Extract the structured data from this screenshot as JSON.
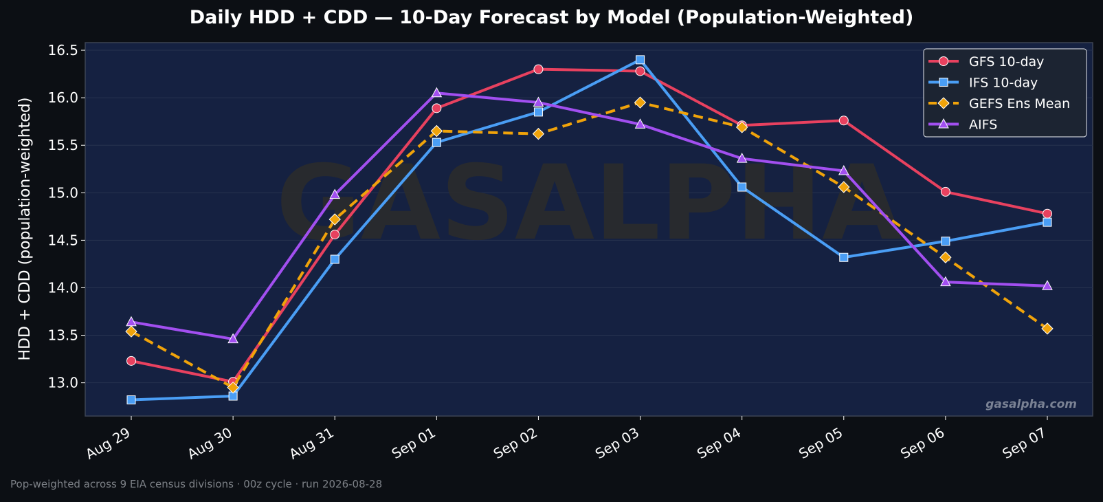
{
  "chart_data": {
    "type": "line",
    "title": "Daily HDD + CDD — 10-Day Forecast by Model (Population-Weighted)",
    "xlabel": "",
    "ylabel": "HDD + CDD (population-weighted)",
    "categories": [
      "Aug 29",
      "Aug 30",
      "Aug 31",
      "Sep 01",
      "Sep 02",
      "Sep 03",
      "Sep 04",
      "Sep 05",
      "Sep 06",
      "Sep 07"
    ],
    "yticks": [
      "13.0",
      "13.5",
      "14.0",
      "14.5",
      "15.0",
      "15.5",
      "16.0",
      "16.5"
    ],
    "ylim": [
      12.65,
      16.58
    ],
    "grid": true,
    "legend_position": "top-right",
    "series": [
      {
        "name": "GFS 10-day",
        "color": "#e8415f",
        "marker": "circle",
        "dash": false,
        "values": [
          13.23,
          13.01,
          14.56,
          15.89,
          16.3,
          16.28,
          15.71,
          15.76,
          15.01,
          14.78
        ]
      },
      {
        "name": "IFS 10-day",
        "color": "#4a9ef5",
        "marker": "square",
        "dash": false,
        "values": [
          12.82,
          12.86,
          14.3,
          15.53,
          15.85,
          16.4,
          15.06,
          14.32,
          14.49,
          14.69
        ]
      },
      {
        "name": "GEFS Ens Mean",
        "color": "#f0a30a",
        "marker": "diamond",
        "dash": true,
        "values": [
          13.54,
          12.95,
          14.72,
          15.65,
          15.62,
          15.95,
          15.69,
          15.06,
          14.32,
          13.57
        ]
      },
      {
        "name": "AIFS",
        "color": "#a24ff0",
        "marker": "triangle",
        "dash": false,
        "values": [
          13.64,
          13.46,
          14.98,
          16.05,
          15.95,
          15.72,
          15.36,
          15.23,
          14.06,
          14.02
        ]
      }
    ]
  },
  "watermark": "GASALPHA",
  "site_label": "gasalpha.com",
  "footer": "Pop-weighted across 9 EIA census divisions  ·  00z cycle  ·  run 2026-08-28"
}
